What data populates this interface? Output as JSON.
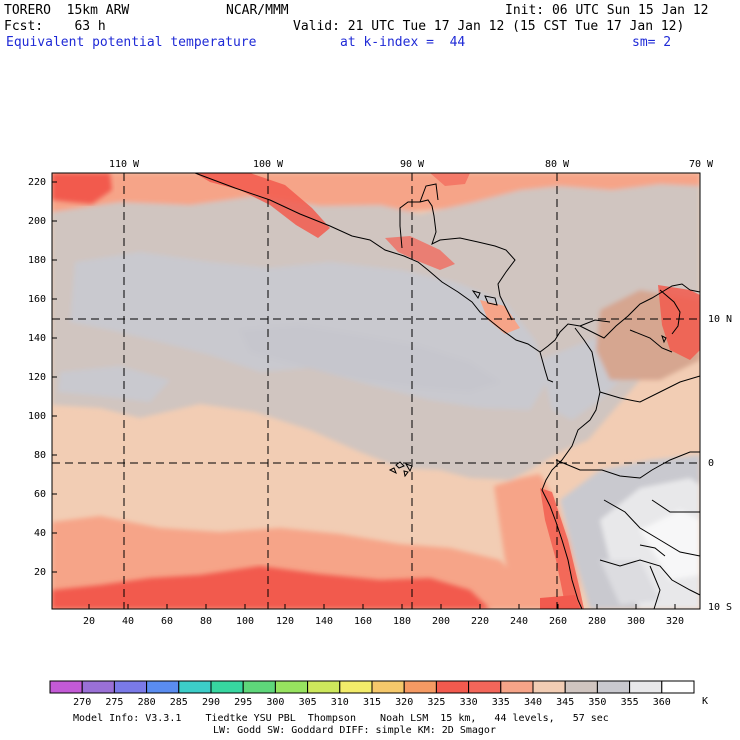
{
  "header": {
    "model": "TORERO  15km ARW",
    "org": "NCAR/MMM",
    "init": "Init: 06 UTC Sun 15 Jan 12",
    "fcst": "Fcst:    63 h",
    "valid": "Valid: 21 UTC Tue 17 Jan 12 (15 CST Tue 17 Jan 12)",
    "field": "Equivalent potential temperature",
    "level": "at k-index =  44",
    "smooth": "sm= 2"
  },
  "map": {
    "top_labels": [
      "110 W",
      "100 W",
      "90 W",
      "80 W",
      "70 W"
    ],
    "right_labels": [
      "10 N",
      "0",
      "10 S"
    ],
    "left_ticks": [
      "220",
      "200",
      "180",
      "160",
      "140",
      "120",
      "100",
      "80",
      "60",
      "40",
      "20"
    ],
    "bottom_ticks": [
      "20",
      "40",
      "60",
      "80",
      "100",
      "120",
      "140",
      "160",
      "180",
      "200",
      "220",
      "240",
      "260",
      "280",
      "300",
      "320"
    ]
  },
  "colorbar": {
    "unit": "K",
    "labels": [
      "270",
      "275",
      "280",
      "285",
      "290",
      "295",
      "300",
      "305",
      "310",
      "315",
      "320",
      "325",
      "330",
      "335",
      "340",
      "345",
      "350",
      "355",
      "360"
    ],
    "colors": [
      "#c35ad6",
      "#9a70d6",
      "#7a7ae8",
      "#5a8cf0",
      "#3ccdc8",
      "#37d6a0",
      "#5ed67a",
      "#97e35f",
      "#cde85c",
      "#f3ec6a",
      "#f5c86b",
      "#f59a63",
      "#f25a4e",
      "#f3665a",
      "#f6a488",
      "#f2cdb4",
      "#d0c5c0",
      "#c9c9cf",
      "#e8e8ea",
      "#ffffff"
    ]
  },
  "footer": {
    "line1": "Model Info: V3.3.1    Tiedtke YSU PBL  Thompson    Noah LSM  15 km,   44 levels,   57 sec",
    "line2": "LW: Godd SW: Goddard DIFF: simple KM: 2D Smagor"
  }
}
